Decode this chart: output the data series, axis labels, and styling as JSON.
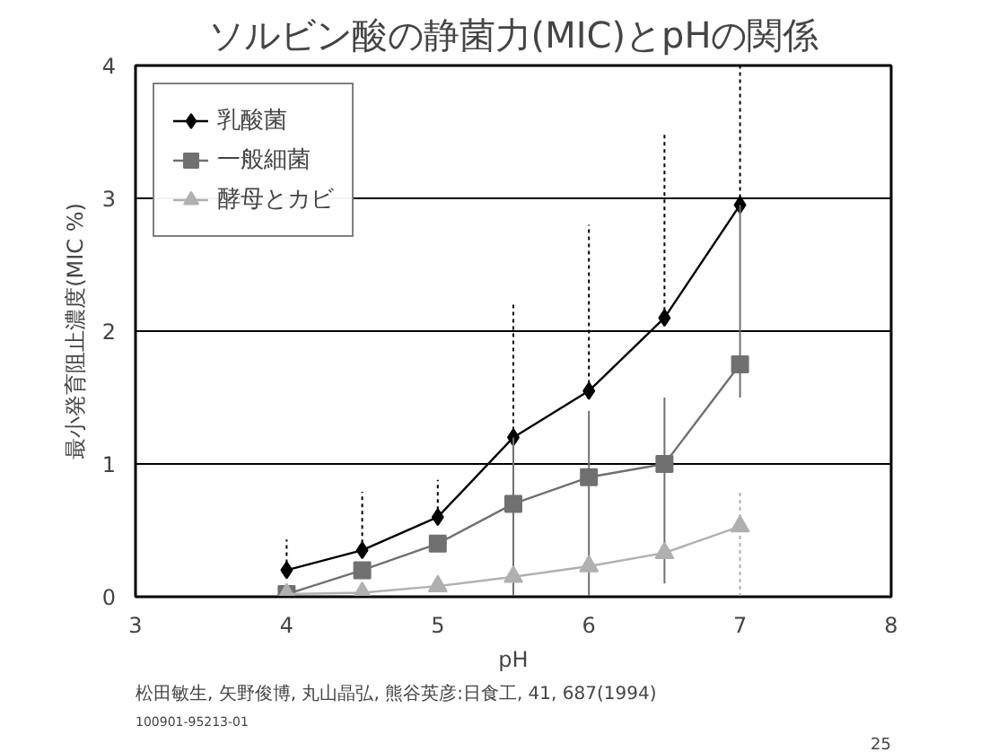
{
  "chart_data": {
    "type": "line",
    "title": "ソルビン酸の静菌力(MIC)とpHの関係",
    "xlabel": "pH",
    "ylabel": "最小発育阻止濃度(MIC %)",
    "x": [
      4,
      4.5,
      5,
      5.5,
      6,
      6.5,
      7
    ],
    "series": [
      {
        "name": "乳酸菌",
        "color": "#000000",
        "marker": "diamond",
        "values": [
          0.2,
          0.35,
          0.6,
          1.2,
          1.55,
          2.1,
          2.95
        ],
        "errors": [
          [
            0.2,
            0.43
          ],
          [
            0.35,
            0.79
          ],
          [
            0.6,
            0.88
          ],
          [
            1.2,
            2.22
          ],
          [
            1.55,
            2.8
          ],
          [
            2.1,
            3.5
          ],
          [
            2.95,
            4
          ]
        ]
      },
      {
        "name": "一般細菌",
        "color": "#707070",
        "marker": "square",
        "values": [
          0.02,
          0.2,
          0.4,
          0.7,
          0.9,
          1.0,
          1.75
        ],
        "errors": [
          null,
          null,
          null,
          [
            0,
            1.2
          ],
          [
            0,
            1.4
          ],
          [
            0.1,
            1.5
          ],
          [
            1.5,
            2.95
          ]
        ]
      },
      {
        "name": "酵母とカビ",
        "color": "#b0b0b0",
        "marker": "triangle",
        "values": [
          0.02,
          0.03,
          0.08,
          0.15,
          0.23,
          0.33,
          0.53
        ],
        "errors": [
          null,
          null,
          null,
          null,
          null,
          null,
          [
            0,
            0.8
          ]
        ]
      }
    ],
    "xlim": [
      3,
      8
    ],
    "xticks": [
      3,
      4,
      5,
      6,
      7,
      8
    ],
    "ylim": [
      0,
      4
    ],
    "yticks": [
      0,
      1,
      2,
      3,
      4
    ],
    "grid": "y",
    "legend": "top left",
    "line_style": "solid",
    "annotations": [
      "松田敏生, 矢野俊博, 丸山晶弘, 熊谷英彦:日食工, 41, 687(1994)",
      "100901-95213-01",
      "25"
    ]
  }
}
